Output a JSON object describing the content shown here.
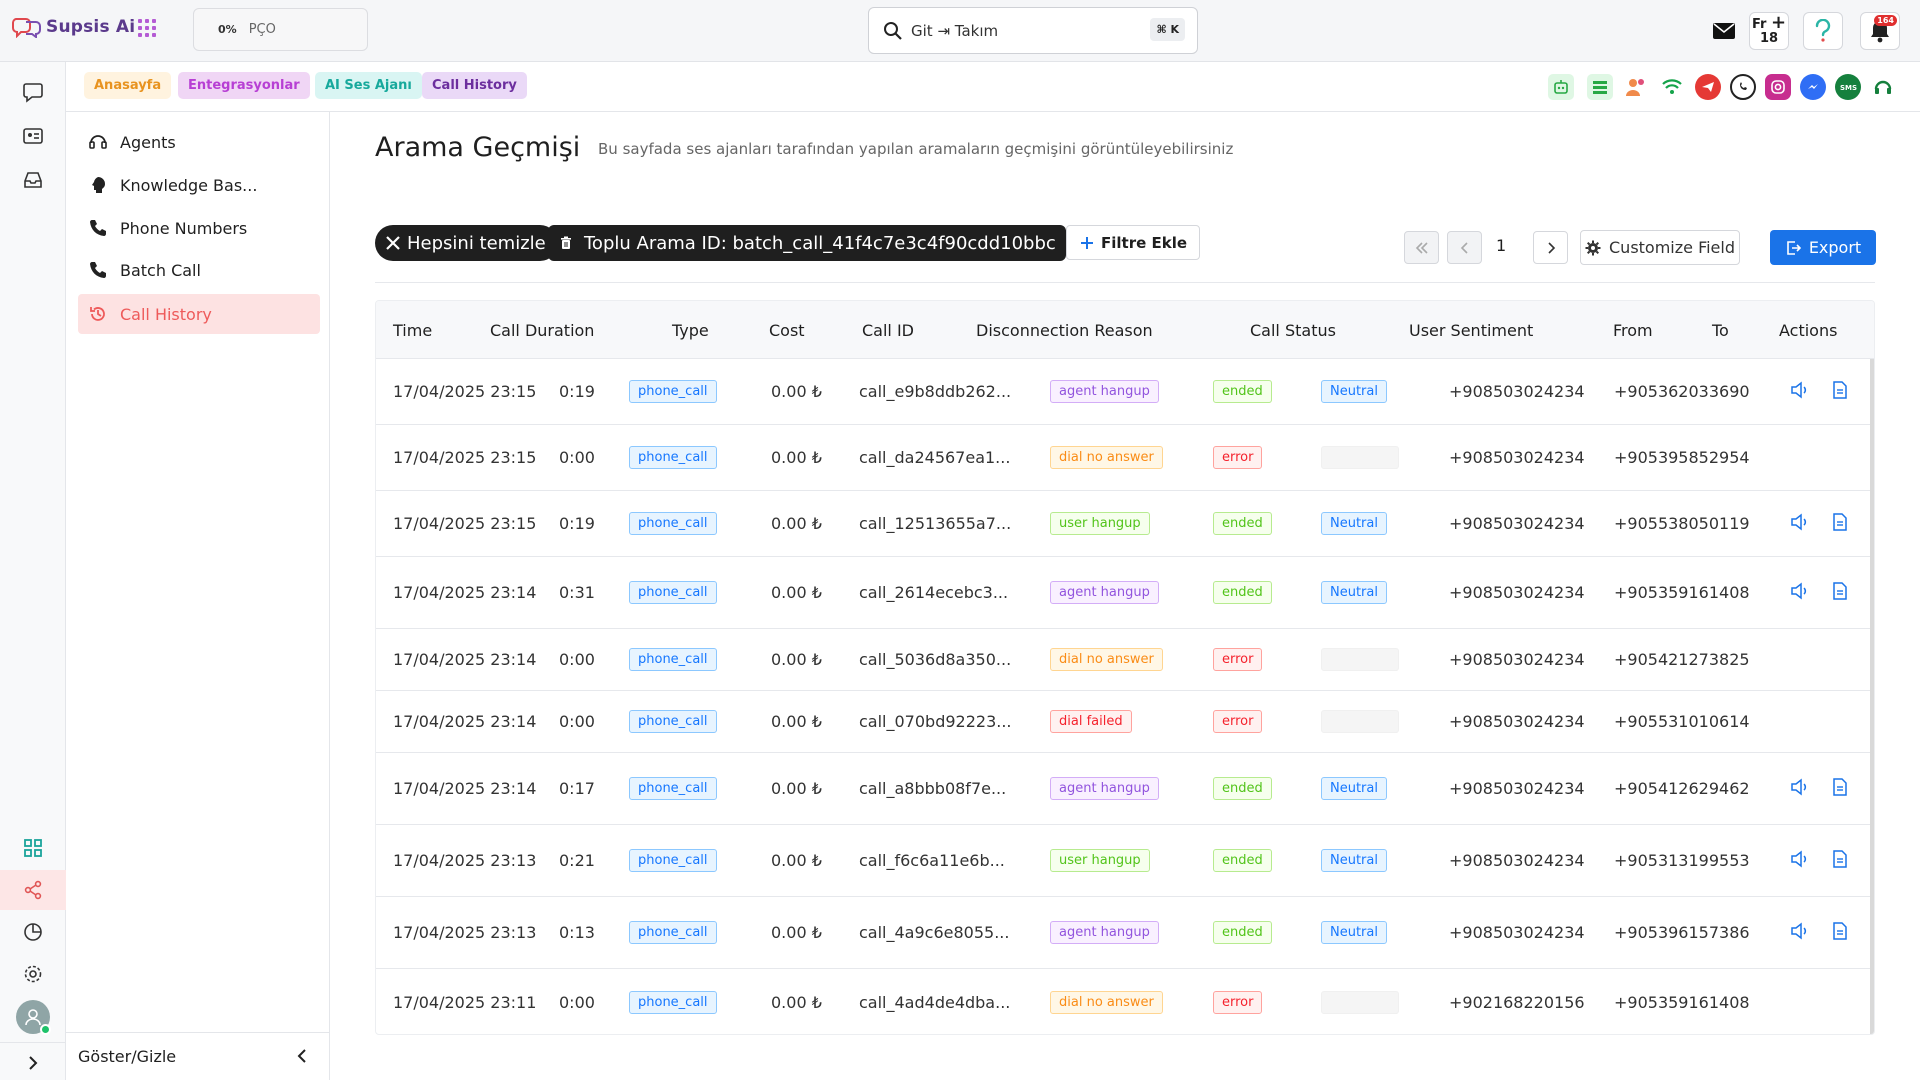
{
  "app": {
    "logo_text": "Supsis Ai"
  },
  "topbar": {
    "progress_pct": "0%",
    "progress_label": "PÇO",
    "search_value": "Git ⇥ Takım",
    "search_shortcut": "⌘ K",
    "fr_label": "Fr",
    "fr_count": "18",
    "bell_count": "164"
  },
  "tabs": [
    {
      "label": "Anasayfa"
    },
    {
      "label": "Entegrasyonlar"
    },
    {
      "label": "AI Ses Ajanı"
    },
    {
      "label": "Call History"
    }
  ],
  "sidebar": {
    "items": [
      {
        "label": "Agents"
      },
      {
        "label": "Knowledge Bas..."
      },
      {
        "label": "Phone Numbers"
      },
      {
        "label": "Batch Call"
      },
      {
        "label": "Call History"
      }
    ],
    "footer_label": "Göster/Gizle"
  },
  "page": {
    "title": "Arama Geçmişi",
    "description": "Bu sayfada ses ajanları tarafından yapılan aramaların geçmişini görüntüleyebilirsiniz"
  },
  "filters": {
    "clear_label": "Hepsini temizle",
    "batch_label": "Toplu Arama ID: batch_call_41f4c7e3c4f90cdd10bbc",
    "add_filter_label": "Filtre Ekle"
  },
  "pagination": {
    "current_page": "1"
  },
  "toolbar": {
    "customize_label": "Customize Field",
    "export_label": "Export"
  },
  "table": {
    "headers": [
      "Time",
      "Call Duration",
      "Type",
      "Cost",
      "Call ID",
      "Disconnection Reason",
      "Call Status",
      "User Sentiment",
      "From",
      "To",
      "Actions"
    ],
    "rows": [
      {
        "time": "17/04/2025 23:15",
        "duration": "0:19",
        "type": "phone_call",
        "cost": "0.00 ₺",
        "call_id": "call_e9b8ddb262...",
        "reason": "agent hangup",
        "reason_color": "purple",
        "status": "ended",
        "sentiment": "Neutral",
        "from": "+908503024234",
        "to": "+905362033690",
        "has_actions": true
      },
      {
        "time": "17/04/2025 23:15",
        "duration": "0:00",
        "type": "phone_call",
        "cost": "0.00 ₺",
        "call_id": "call_da24567ea1...",
        "reason": "dial no answer",
        "reason_color": "orange",
        "status": "error",
        "sentiment": "",
        "from": "+908503024234",
        "to": "+905395852954",
        "has_actions": false
      },
      {
        "time": "17/04/2025 23:15",
        "duration": "0:19",
        "type": "phone_call",
        "cost": "0.00 ₺",
        "call_id": "call_12513655a7...",
        "reason": "user hangup",
        "reason_color": "green",
        "status": "ended",
        "sentiment": "Neutral",
        "from": "+908503024234",
        "to": "+905538050119",
        "has_actions": true
      },
      {
        "time": "17/04/2025 23:14",
        "duration": "0:31",
        "type": "phone_call",
        "cost": "0.00 ₺",
        "call_id": "call_2614ecebc3...",
        "reason": "agent hangup",
        "reason_color": "purple",
        "status": "ended",
        "sentiment": "Neutral",
        "from": "+908503024234",
        "to": "+905359161408",
        "has_actions": true
      },
      {
        "time": "17/04/2025 23:14",
        "duration": "0:00",
        "type": "phone_call",
        "cost": "0.00 ₺",
        "call_id": "call_5036d8a350...",
        "reason": "dial no answer",
        "reason_color": "orange",
        "status": "error",
        "sentiment": "",
        "from": "+908503024234",
        "to": "+905421273825",
        "has_actions": false
      },
      {
        "time": "17/04/2025 23:14",
        "duration": "0:00",
        "type": "phone_call",
        "cost": "0.00 ₺",
        "call_id": "call_070bd92223...",
        "reason": "dial failed",
        "reason_color": "red",
        "status": "error",
        "sentiment": "",
        "from": "+908503024234",
        "to": "+905531010614",
        "has_actions": false
      },
      {
        "time": "17/04/2025 23:14",
        "duration": "0:17",
        "type": "phone_call",
        "cost": "0.00 ₺",
        "call_id": "call_a8bbb08f7e...",
        "reason": "agent hangup",
        "reason_color": "purple",
        "status": "ended",
        "sentiment": "Neutral",
        "from": "+908503024234",
        "to": "+905412629462",
        "has_actions": true
      },
      {
        "time": "17/04/2025 23:13",
        "duration": "0:21",
        "type": "phone_call",
        "cost": "0.00 ₺",
        "call_id": "call_f6c6a11e6b...",
        "reason": "user hangup",
        "reason_color": "green",
        "status": "ended",
        "sentiment": "Neutral",
        "from": "+908503024234",
        "to": "+905313199553",
        "has_actions": true
      },
      {
        "time": "17/04/2025 23:13",
        "duration": "0:13",
        "type": "phone_call",
        "cost": "0.00 ₺",
        "call_id": "call_4a9c6e8055...",
        "reason": "agent hangup",
        "reason_color": "purple",
        "status": "ended",
        "sentiment": "Neutral",
        "from": "+908503024234",
        "to": "+905396157386",
        "has_actions": true
      },
      {
        "time": "17/04/2025 23:11",
        "duration": "0:00",
        "type": "phone_call",
        "cost": "0.00 ₺",
        "call_id": "call_4ad4de4dba...",
        "reason": "dial no answer",
        "reason_color": "orange",
        "status": "error",
        "sentiment": "",
        "from": "+902168220156",
        "to": "+905359161408",
        "has_actions": false
      }
    ]
  }
}
